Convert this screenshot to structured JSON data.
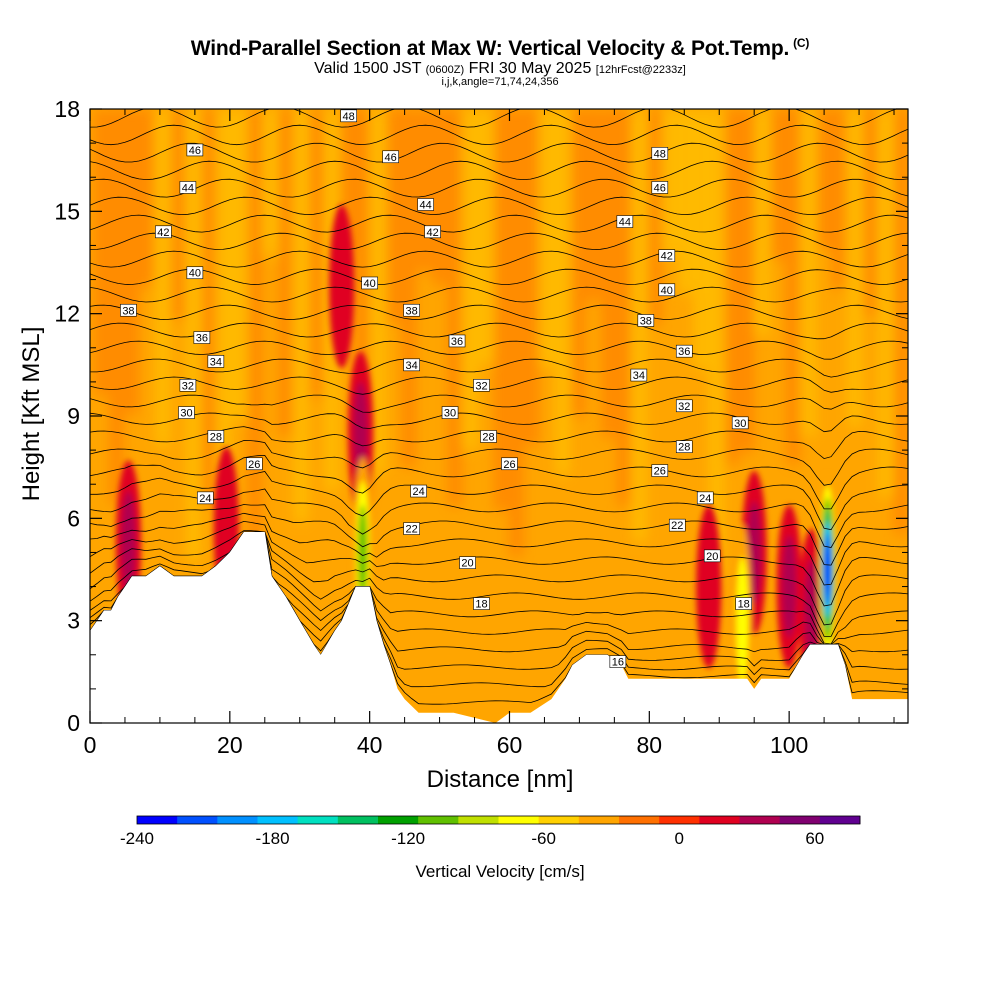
{
  "chart_data": {
    "type": "heatmap",
    "title": "Wind-Parallel Section at Max W: Vertical Velocity & Pot.Temp.",
    "title_mark": "(C)",
    "subtitle": {
      "valid": "Valid 1500 JST",
      "zulu": "(0600Z)",
      "date": "FRI 30 May 2025",
      "fcst": "[12hrFcst@2233z]"
    },
    "indices": "i,j,k,angle=71,74,24,356",
    "xlabel": "Distance [nm]",
    "ylabel": "Height [Kft MSL]",
    "xlim": [
      0,
      117
    ],
    "ylim": [
      0,
      18
    ],
    "xticks": [
      0,
      20,
      40,
      60,
      80,
      100
    ],
    "yticks": [
      0,
      3,
      6,
      9,
      12,
      15,
      18
    ],
    "colorbar": {
      "label": "Vertical Velocity [cm/s]",
      "min": -240,
      "max": 80,
      "step": 20,
      "ticks": [
        -240,
        -180,
        -120,
        -60,
        0,
        60
      ],
      "colors": [
        "#0000ff",
        "#0050ff",
        "#0090ff",
        "#00c0ff",
        "#00e0c0",
        "#00c060",
        "#00a000",
        "#60c000",
        "#c0e000",
        "#ffff00",
        "#ffd000",
        "#ffa500",
        "#ff7000",
        "#ff3000",
        "#e00020",
        "#b00050",
        "#800070",
        "#600090"
      ]
    },
    "terrain": [
      [
        0,
        2.7
      ],
      [
        1,
        3.0
      ],
      [
        2,
        3.3
      ],
      [
        3,
        3.3
      ],
      [
        4,
        3.7
      ],
      [
        5,
        4.0
      ],
      [
        6,
        4.3
      ],
      [
        8,
        4.3
      ],
      [
        10,
        4.6
      ],
      [
        12,
        4.3
      ],
      [
        16,
        4.3
      ],
      [
        18,
        4.6
      ],
      [
        20,
        5.0
      ],
      [
        22,
        5.6
      ],
      [
        25,
        5.6
      ],
      [
        26,
        4.3
      ],
      [
        28,
        3.7
      ],
      [
        30,
        3.0
      ],
      [
        32,
        2.3
      ],
      [
        33,
        2.0
      ],
      [
        35,
        2.7
      ],
      [
        36,
        3.0
      ],
      [
        38,
        4.0
      ],
      [
        40,
        4.0
      ],
      [
        41,
        3.0
      ],
      [
        42,
        2.3
      ],
      [
        43,
        1.7
      ],
      [
        44,
        1.0
      ],
      [
        45,
        0.7
      ],
      [
        47,
        0.3
      ],
      [
        52,
        0.3
      ],
      [
        58,
        0.0
      ],
      [
        60,
        0.3
      ],
      [
        63,
        0.3
      ],
      [
        66,
        0.7
      ],
      [
        68,
        1.3
      ],
      [
        69,
        1.7
      ],
      [
        71,
        2.0
      ],
      [
        74,
        2.0
      ],
      [
        76,
        1.7
      ],
      [
        77,
        1.3
      ],
      [
        86,
        1.3
      ],
      [
        94,
        1.3
      ],
      [
        95,
        1.0
      ],
      [
        96,
        1.3
      ],
      [
        100,
        1.3
      ],
      [
        102,
        2.0
      ],
      [
        103,
        2.3
      ],
      [
        107,
        2.3
      ],
      [
        108,
        1.7
      ],
      [
        109,
        0.7
      ],
      [
        117,
        0.7
      ]
    ],
    "updrafts": [
      {
        "x": 5.5,
        "z": 5.3,
        "w": 60
      },
      {
        "x": 19.5,
        "z": 5.7,
        "w": 50
      },
      {
        "x": 38.7,
        "z": 8.5,
        "w": 70
      },
      {
        "x": 36.0,
        "z": 12.8,
        "w": 40
      },
      {
        "x": 95.0,
        "z": 5.0,
        "w": 60
      },
      {
        "x": 100.0,
        "z": 4.0,
        "w": 60
      },
      {
        "x": 103.2,
        "z": 3.3,
        "w": 60
      },
      {
        "x": 88.5,
        "z": 4.0,
        "w": 40
      }
    ],
    "downdrafts": [
      {
        "x": 39.0,
        "z": 5.0,
        "w": -100
      },
      {
        "x": 93.3,
        "z": 3.0,
        "w": -60
      },
      {
        "x": 105.5,
        "z": 4.5,
        "w": -240
      }
    ],
    "theta_labels": [
      {
        "x": 37.0,
        "z": 17.8,
        "t": "48"
      },
      {
        "x": 15.0,
        "z": 16.8,
        "t": "46"
      },
      {
        "x": 43.0,
        "z": 16.6,
        "t": "46"
      },
      {
        "x": 81.5,
        "z": 16.7,
        "t": "48"
      },
      {
        "x": 14.0,
        "z": 15.7,
        "t": "44"
      },
      {
        "x": 81.5,
        "z": 15.7,
        "t": "46"
      },
      {
        "x": 48.0,
        "z": 15.2,
        "t": "44"
      },
      {
        "x": 76.5,
        "z": 14.7,
        "t": "44"
      },
      {
        "x": 10.5,
        "z": 14.4,
        "t": "42"
      },
      {
        "x": 49.0,
        "z": 14.4,
        "t": "42"
      },
      {
        "x": 82.5,
        "z": 13.7,
        "t": "42"
      },
      {
        "x": 15.0,
        "z": 13.2,
        "t": "40"
      },
      {
        "x": 40.0,
        "z": 12.9,
        "t": "40"
      },
      {
        "x": 82.5,
        "z": 12.7,
        "t": "40"
      },
      {
        "x": 5.5,
        "z": 12.1,
        "t": "38"
      },
      {
        "x": 46.0,
        "z": 12.1,
        "t": "38"
      },
      {
        "x": 79.5,
        "z": 11.8,
        "t": "38"
      },
      {
        "x": 16.0,
        "z": 11.3,
        "t": "36"
      },
      {
        "x": 52.5,
        "z": 11.2,
        "t": "36"
      },
      {
        "x": 85.0,
        "z": 10.9,
        "t": "36"
      },
      {
        "x": 18.0,
        "z": 10.6,
        "t": "34"
      },
      {
        "x": 46.0,
        "z": 10.5,
        "t": "34"
      },
      {
        "x": 78.5,
        "z": 10.2,
        "t": "34"
      },
      {
        "x": 14.0,
        "z": 9.9,
        "t": "32"
      },
      {
        "x": 56.0,
        "z": 9.9,
        "t": "32"
      },
      {
        "x": 85.0,
        "z": 9.3,
        "t": "32"
      },
      {
        "x": 13.8,
        "z": 9.1,
        "t": "30"
      },
      {
        "x": 51.5,
        "z": 9.1,
        "t": "30"
      },
      {
        "x": 93.0,
        "z": 8.8,
        "t": "30"
      },
      {
        "x": 18.0,
        "z": 8.4,
        "t": "28"
      },
      {
        "x": 57.0,
        "z": 8.4,
        "t": "28"
      },
      {
        "x": 85.0,
        "z": 8.1,
        "t": "28"
      },
      {
        "x": 23.5,
        "z": 7.6,
        "t": "26"
      },
      {
        "x": 60.0,
        "z": 7.6,
        "t": "26"
      },
      {
        "x": 81.5,
        "z": 7.4,
        "t": "26"
      },
      {
        "x": 16.5,
        "z": 6.6,
        "t": "24"
      },
      {
        "x": 47.0,
        "z": 6.8,
        "t": "24"
      },
      {
        "x": 88.0,
        "z": 6.6,
        "t": "24"
      },
      {
        "x": 46.0,
        "z": 5.7,
        "t": "22"
      },
      {
        "x": 84.0,
        "z": 5.8,
        "t": "22"
      },
      {
        "x": 54.0,
        "z": 4.7,
        "t": "20"
      },
      {
        "x": 89.0,
        "z": 4.9,
        "t": "20"
      },
      {
        "x": 56.0,
        "z": 3.5,
        "t": "18"
      },
      {
        "x": 93.5,
        "z": 3.5,
        "t": "18"
      },
      {
        "x": 75.5,
        "z": 1.8,
        "t": "16"
      }
    ]
  }
}
